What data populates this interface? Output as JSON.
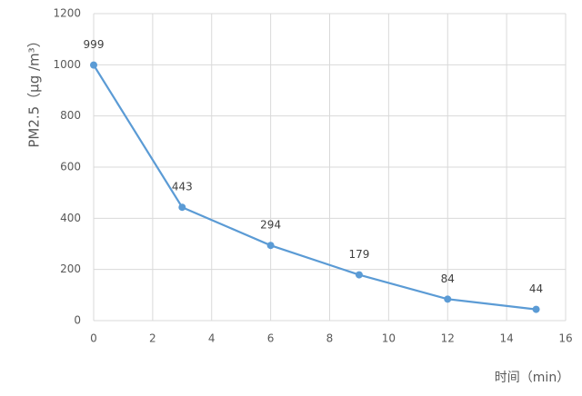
{
  "chart_data": {
    "type": "line",
    "x_label": "时间（min）",
    "y_label": "PM2.5（μg /m³）",
    "x": [
      0,
      3,
      6,
      9,
      12,
      15
    ],
    "series": [
      {
        "name": "PM2.5",
        "color": "#5b9bd5",
        "values": [
          999,
          443,
          294,
          179,
          84,
          44
        ]
      }
    ],
    "xlim": [
      0,
      16
    ],
    "xticks": [
      0,
      2,
      4,
      6,
      8,
      10,
      12,
      14,
      16
    ],
    "ylim": [
      0,
      1200
    ],
    "yticks": [
      0,
      200,
      400,
      600,
      800,
      1000,
      1200
    ],
    "grid": true,
    "data_labels": true
  }
}
